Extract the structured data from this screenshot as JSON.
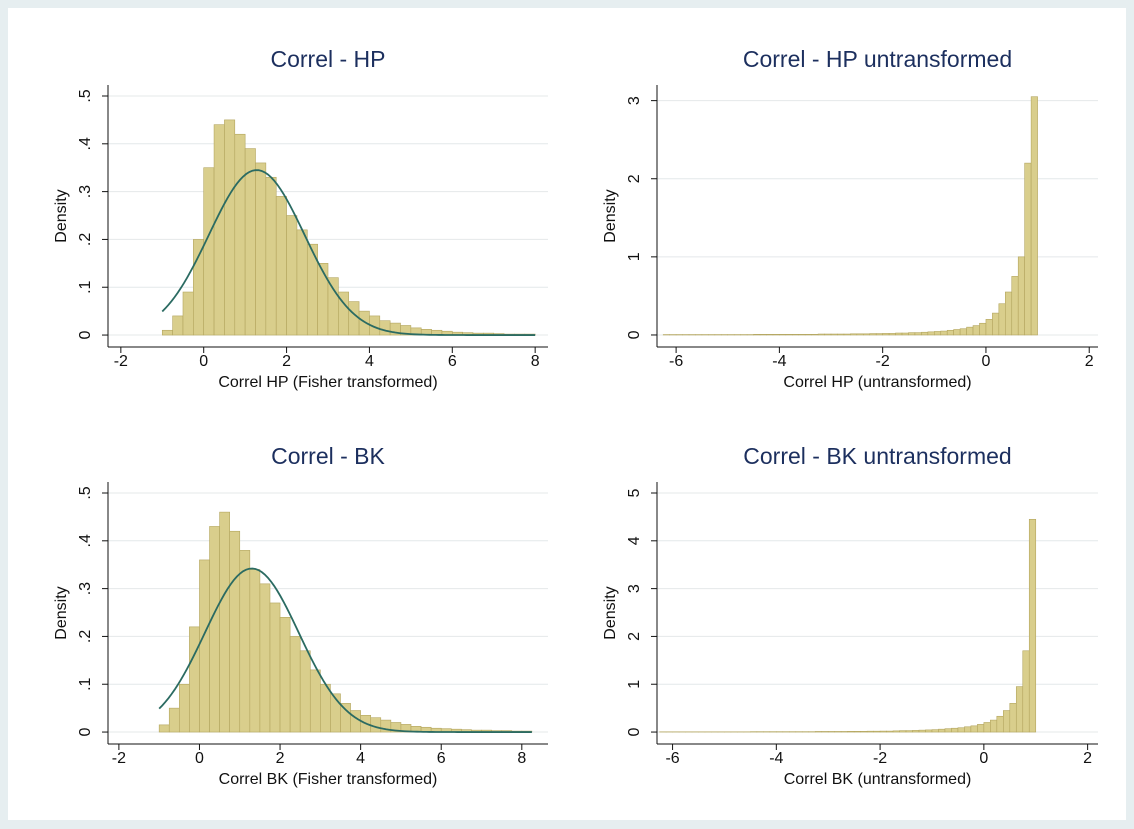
{
  "chart_data": [
    {
      "type": "histogram",
      "title": "Correl - HP",
      "xlabel": "Correl HP (Fisher transformed)",
      "ylabel": "Density",
      "color": "#d9ce8c",
      "edgecolor": "#b3a55e",
      "grid": true,
      "bins": [
        -1,
        -0.75,
        -0.5,
        -0.25,
        0,
        0.25,
        0.5,
        0.75,
        1,
        1.25,
        1.5,
        1.75,
        2,
        2.25,
        2.5,
        2.75,
        3,
        3.25,
        3.5,
        3.75,
        4,
        4.25,
        4.5,
        4.75,
        5,
        5.25,
        5.5,
        5.75,
        6,
        6.25,
        6.5,
        6.75,
        7,
        7.25,
        7.5,
        7.75,
        8
      ],
      "values": [
        0.01,
        0.04,
        0.09,
        0.2,
        0.35,
        0.44,
        0.45,
        0.42,
        0.39,
        0.36,
        0.33,
        0.29,
        0.25,
        0.22,
        0.19,
        0.15,
        0.12,
        0.09,
        0.07,
        0.05,
        0.04,
        0.03,
        0.025,
        0.02,
        0.015,
        0.012,
        0.01,
        0.008,
        0.006,
        0.005,
        0.004,
        0.004,
        0.003,
        0.002,
        0.002,
        0.002
      ],
      "normal": {
        "mean": 1.28,
        "sd": 1.156,
        "color": "#2b6b62"
      },
      "xlim": [
        -2.31,
        8.31
      ],
      "ylim": [
        -0.025,
        0.523
      ],
      "xticks": [
        -2,
        0,
        2,
        4,
        6,
        8
      ],
      "yticks": [
        0,
        {
          "value": 0.1,
          "label": ".1"
        },
        {
          "value": 0.2,
          "label": ".2"
        },
        {
          "value": 0.3,
          "label": ".3"
        },
        {
          "value": 0.4,
          "label": ".4"
        },
        {
          "value": 0.5,
          "label": ".5"
        }
      ]
    },
    {
      "type": "histogram",
      "title": "Correl - HP untransformed",
      "xlabel": "Correl HP (untransformed)",
      "ylabel": "Density",
      "color": "#d9ce8c",
      "edgecolor": "#b3a55e",
      "grid": true,
      "bins": [
        -6.25,
        -6.125,
        -6,
        -5.875,
        -5.75,
        -5.625,
        -5.5,
        -5.375,
        -5.25,
        -5.125,
        -5,
        -4.875,
        -4.75,
        -4.625,
        -4.5,
        -4.375,
        -4.25,
        -4.125,
        -4,
        -3.875,
        -3.75,
        -3.625,
        -3.5,
        -3.375,
        -3.25,
        -3.125,
        -3,
        -2.875,
        -2.75,
        -2.625,
        -2.5,
        -2.375,
        -2.25,
        -2.125,
        -2,
        -1.875,
        -1.75,
        -1.625,
        -1.5,
        -1.375,
        -1.25,
        -1.125,
        -1,
        -0.875,
        -0.75,
        -0.625,
        -0.5,
        -0.375,
        -0.25,
        -0.125,
        0,
        0.125,
        0.25,
        0.375,
        0.5,
        0.625,
        0.75,
        0.875,
        1
      ],
      "values": [
        0.005,
        0.005,
        0.005,
        0.005,
        0.005,
        0.005,
        0.005,
        0.005,
        0.005,
        0.005,
        0.005,
        0.005,
        0.005,
        0.005,
        0.008,
        0.008,
        0.008,
        0.008,
        0.008,
        0.008,
        0.008,
        0.008,
        0.008,
        0.008,
        0.012,
        0.012,
        0.012,
        0.012,
        0.012,
        0.015,
        0.015,
        0.015,
        0.018,
        0.018,
        0.02,
        0.02,
        0.025,
        0.025,
        0.03,
        0.03,
        0.035,
        0.04,
        0.045,
        0.05,
        0.06,
        0.07,
        0.08,
        0.1,
        0.12,
        0.15,
        0.2,
        0.28,
        0.4,
        0.55,
        0.75,
        1.0,
        2.2,
        3.05
      ],
      "xlim": [
        -6.37,
        2.17
      ],
      "ylim": [
        -0.154,
        3.2
      ],
      "xticks": [
        -6,
        -4,
        -2,
        0,
        2
      ],
      "yticks": [
        0,
        1,
        2,
        3
      ]
    },
    {
      "type": "histogram",
      "title": "Correl - BK",
      "xlabel": "Correl BK (Fisher transformed)",
      "ylabel": "Density",
      "color": "#d9ce8c",
      "edgecolor": "#b3a55e",
      "grid": true,
      "bins": [
        -1,
        -0.75,
        -0.5,
        -0.25,
        0,
        0.25,
        0.5,
        0.75,
        1,
        1.25,
        1.5,
        1.75,
        2,
        2.25,
        2.5,
        2.75,
        3,
        3.25,
        3.5,
        3.75,
        4,
        4.25,
        4.5,
        4.75,
        5,
        5.25,
        5.5,
        5.75,
        6,
        6.25,
        6.5,
        6.75,
        7,
        7.25,
        7.5,
        7.75,
        8,
        8.25
      ],
      "values": [
        0.015,
        0.05,
        0.1,
        0.22,
        0.36,
        0.43,
        0.46,
        0.42,
        0.38,
        0.34,
        0.31,
        0.27,
        0.24,
        0.2,
        0.17,
        0.13,
        0.1,
        0.08,
        0.06,
        0.045,
        0.035,
        0.03,
        0.025,
        0.02,
        0.016,
        0.012,
        0.01,
        0.008,
        0.007,
        0.006,
        0.005,
        0.004,
        0.004,
        0.003,
        0.003,
        0.002,
        0.002
      ],
      "normal": {
        "mean": 1.3,
        "sd": 1.166,
        "color": "#2b6b62"
      },
      "xlim": [
        -2.27,
        8.65
      ],
      "ylim": [
        -0.025,
        0.523
      ],
      "xticks": [
        -2,
        0,
        2,
        4,
        6,
        8
      ],
      "yticks": [
        0,
        {
          "value": 0.1,
          "label": ".1"
        },
        {
          "value": 0.2,
          "label": ".2"
        },
        {
          "value": 0.3,
          "label": ".3"
        },
        {
          "value": 0.4,
          "label": ".4"
        },
        {
          "value": 0.5,
          "label": ".5"
        }
      ]
    },
    {
      "type": "histogram",
      "title": "Correl - BK untransformed",
      "xlabel": "Correl BK (untransformed)",
      "ylabel": "Density",
      "color": "#d9ce8c",
      "edgecolor": "#b3a55e",
      "grid": true,
      "bins": [
        -6.25,
        -6.125,
        -6,
        -5.875,
        -5.75,
        -5.625,
        -5.5,
        -5.375,
        -5.25,
        -5.125,
        -5,
        -4.875,
        -4.75,
        -4.625,
        -4.5,
        -4.375,
        -4.25,
        -4.125,
        -4,
        -3.875,
        -3.75,
        -3.625,
        -3.5,
        -3.375,
        -3.25,
        -3.125,
        -3,
        -2.875,
        -2.75,
        -2.625,
        -2.5,
        -2.375,
        -2.25,
        -2.125,
        -2,
        -1.875,
        -1.75,
        -1.625,
        -1.5,
        -1.375,
        -1.25,
        -1.125,
        -1,
        -0.875,
        -0.75,
        -0.625,
        -0.5,
        -0.375,
        -0.25,
        -0.125,
        0,
        0.125,
        0.25,
        0.375,
        0.5,
        0.625,
        0.75,
        0.875,
        1
      ],
      "values": [
        0.005,
        0.005,
        0.005,
        0.005,
        0.005,
        0.005,
        0.005,
        0.005,
        0.005,
        0.005,
        0.005,
        0.005,
        0.005,
        0.005,
        0.008,
        0.008,
        0.008,
        0.008,
        0.008,
        0.008,
        0.008,
        0.008,
        0.008,
        0.008,
        0.012,
        0.012,
        0.012,
        0.012,
        0.012,
        0.015,
        0.015,
        0.015,
        0.018,
        0.018,
        0.02,
        0.02,
        0.025,
        0.03,
        0.03,
        0.035,
        0.04,
        0.045,
        0.05,
        0.06,
        0.07,
        0.08,
        0.09,
        0.11,
        0.13,
        0.16,
        0.2,
        0.25,
        0.33,
        0.45,
        0.6,
        0.95,
        1.7,
        4.45
      ],
      "xlim": [
        -6.3,
        2.2
      ],
      "ylim": [
        -0.25,
        5.23
      ],
      "xticks": [
        -6,
        -4,
        -2,
        0,
        2
      ],
      "yticks": [
        0,
        1,
        2,
        3,
        4,
        5
      ]
    }
  ]
}
